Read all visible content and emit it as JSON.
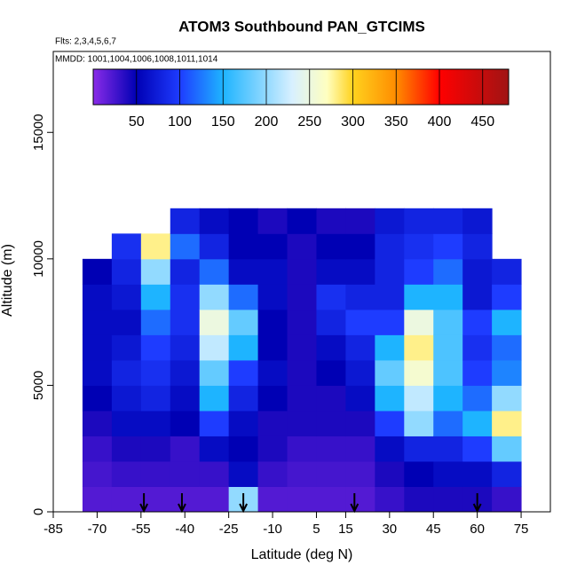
{
  "chart_data": {
    "type": "heatmap",
    "title": "ATOM3 Southbound PAN_GTCIMS",
    "subtitle": "Flts: 2,3,4,5,6,7",
    "annotation": "MMDD: 1001,1004,1006,1008,1011,1014",
    "x_label": "Latitude (deg N)",
    "y_label": "Altitude (m)",
    "xlim": [
      -85,
      85
    ],
    "ylim": [
      0,
      18200
    ],
    "xticks": [
      -85,
      -70,
      -55,
      -40,
      -25,
      -10,
      5,
      15,
      30,
      45,
      60,
      75
    ],
    "yticks": [
      0,
      5000,
      10000,
      15000
    ],
    "x": [
      -70,
      -60,
      -50,
      -40,
      -30,
      -20,
      -10,
      0,
      10,
      20,
      30,
      40,
      50,
      60,
      70
    ],
    "y": [
      500,
      1500,
      2500,
      3500,
      4500,
      5500,
      6500,
      7500,
      8500,
      9500,
      10500,
      11500
    ],
    "cell_width": 10,
    "cell_height": 1000,
    "z": [
      [
        20,
        25,
        30,
        40,
        50,
        60,
        60,
        60,
        60,
        50,
        null,
        null
      ],
      [
        20,
        30,
        40,
        60,
        70,
        80,
        70,
        60,
        70,
        80,
        90,
        null
      ],
      [
        20,
        30,
        40,
        60,
        80,
        90,
        100,
        120,
        150,
        200,
        280,
        null
      ],
      [
        20,
        30,
        30,
        50,
        60,
        70,
        80,
        90,
        90,
        80,
        120,
        80
      ],
      [
        20,
        30,
        60,
        100,
        150,
        180,
        220,
        250,
        200,
        120,
        80,
        60
      ],
      [
        200,
        60,
        50,
        60,
        80,
        100,
        150,
        180,
        120,
        60,
        50,
        50
      ],
      [
        20,
        30,
        40,
        40,
        50,
        60,
        50,
        50,
        60,
        60,
        50,
        40
      ],
      [
        20,
        25,
        30,
        40,
        40,
        40,
        40,
        40,
        40,
        40,
        40,
        50
      ],
      [
        20,
        25,
        30,
        40,
        40,
        50,
        60,
        80,
        90,
        60,
        50,
        40
      ],
      [
        20,
        25,
        30,
        40,
        60,
        70,
        80,
        100,
        80,
        60,
        50,
        40
      ],
      [
        30,
        40,
        60,
        100,
        150,
        180,
        150,
        100,
        80,
        80,
        80,
        70
      ],
      [
        40,
        50,
        80,
        200,
        220,
        260,
        280,
        250,
        150,
        100,
        90,
        80
      ],
      [
        40,
        60,
        80,
        120,
        150,
        170,
        170,
        170,
        150,
        120,
        100,
        80
      ],
      [
        40,
        60,
        100,
        150,
        120,
        100,
        90,
        100,
        70,
        70,
        80,
        70
      ],
      [
        30,
        80,
        180,
        280,
        200,
        130,
        120,
        150,
        100,
        80,
        null,
        null
      ]
    ],
    "colorbar_lim": [
      0,
      480
    ],
    "colorbar_ticks": [
      50,
      100,
      150,
      200,
      250,
      300,
      350,
      400,
      450
    ],
    "colorscale": [
      [
        0,
        "#8a2be8"
      ],
      [
        50,
        "#0000b4"
      ],
      [
        100,
        "#1e3cff"
      ],
      [
        150,
        "#1eb4ff"
      ],
      [
        230,
        "#d8f0ff"
      ],
      [
        270,
        "#ffffc0"
      ],
      [
        300,
        "#ffd21e"
      ],
      [
        350,
        "#ff8c00"
      ],
      [
        400,
        "#ff0000"
      ],
      [
        480,
        "#a01414"
      ]
    ],
    "flight_markers": [
      -54,
      -41,
      -20,
      18,
      60
    ]
  }
}
